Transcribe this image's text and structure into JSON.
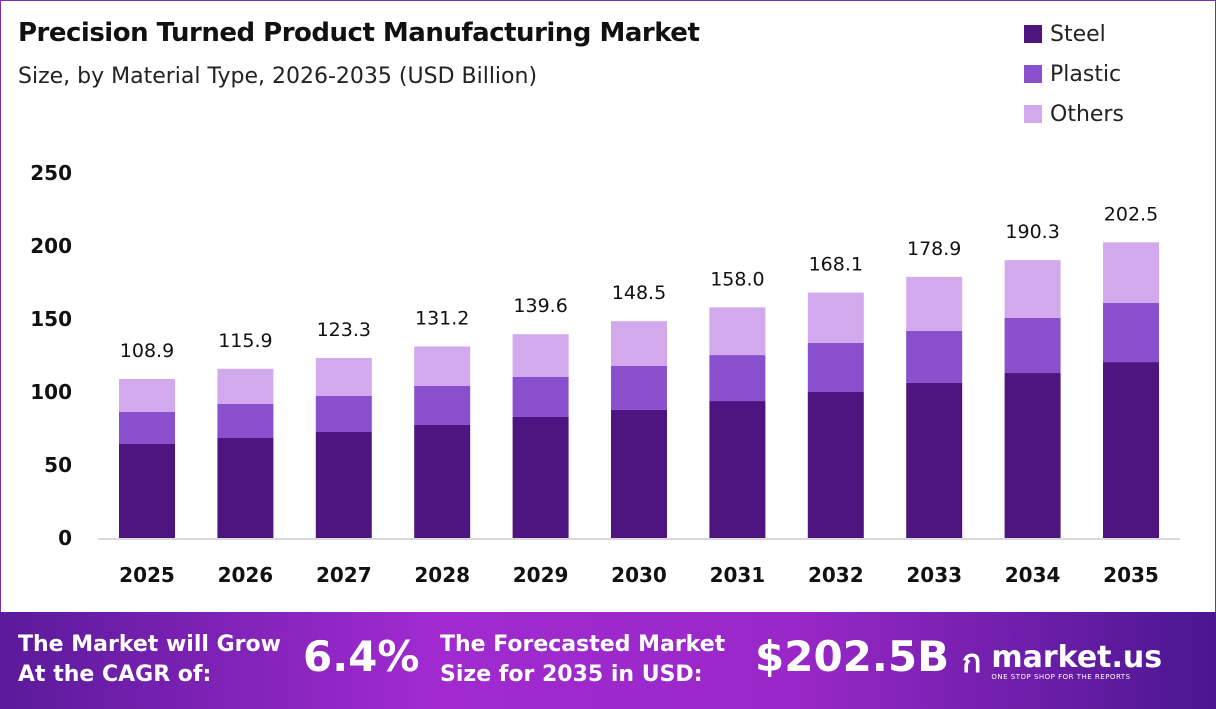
{
  "chart_data": {
    "type": "bar",
    "stacked": true,
    "title": "Precision Turned Product Manufacturing Market",
    "subtitle": "Size, by Material Type, 2026-2035 (USD Billion)",
    "categories": [
      "2025",
      "2026",
      "2027",
      "2028",
      "2029",
      "2030",
      "2031",
      "2032",
      "2033",
      "2034",
      "2035"
    ],
    "series": [
      {
        "name": "Steel",
        "color": "#4e1580",
        "values": [
          64.4,
          68.5,
          72.6,
          77.4,
          82.9,
          87.7,
          93.8,
          100.0,
          106.2,
          113.0,
          120.5
        ]
      },
      {
        "name": "Plastic",
        "color": "#8a4fcc",
        "values": [
          21.9,
          23.3,
          24.7,
          26.7,
          27.4,
          30.1,
          31.5,
          33.6,
          35.6,
          37.7,
          40.5
        ]
      },
      {
        "name": "Others",
        "color": "#d1a9ec",
        "values": [
          22.6,
          24.1,
          26.0,
          27.1,
          29.3,
          30.7,
          32.7,
          34.5,
          37.1,
          39.6,
          41.5
        ]
      }
    ],
    "totals": [
      "108.9",
      "115.9",
      "123.3",
      "131.2",
      "139.6",
      "148.5",
      "158.0",
      "168.1",
      "178.9",
      "190.3",
      "202.5"
    ],
    "yticks": [
      "0",
      "50",
      "100",
      "150",
      "200",
      "250"
    ],
    "ylim": [
      0,
      250
    ],
    "grid": false,
    "legend": "top-right",
    "xlabel": "",
    "ylabel": ""
  },
  "footer": {
    "cagr_label_1": "The Market will Grow",
    "cagr_label_2": "At the CAGR of:",
    "cagr_value": "6.4%",
    "forecast_label_1": "The Forecasted Market",
    "forecast_label_2": "Size for 2035 in USD:",
    "forecast_value": "$202.5B",
    "logo_name": "market.us",
    "logo_tagline": "ONE STOP SHOP FOR THE REPORTS"
  }
}
